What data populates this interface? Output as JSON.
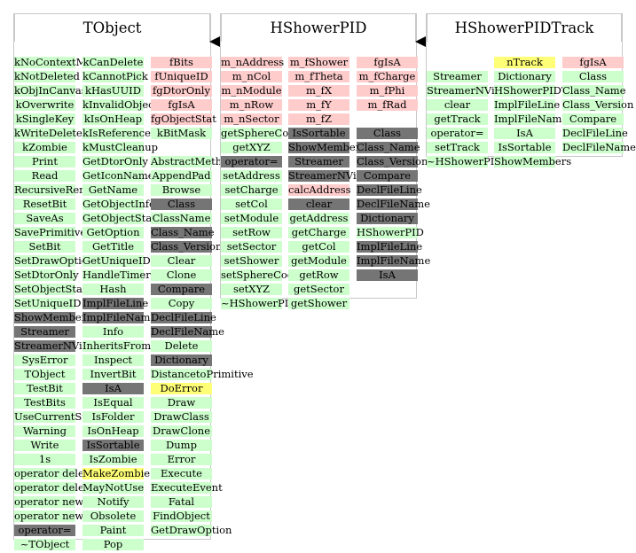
{
  "classes": [
    {
      "title": "TObject",
      "columns": [
        {
          "cells": [
            {
              "t": "kNoContextMenu",
              "c": "green"
            },
            {
              "t": "kNotDeleted",
              "c": "green"
            },
            {
              "t": "kObjInCanvas",
              "c": "green"
            },
            {
              "t": "kOverwrite",
              "c": "green"
            },
            {
              "t": "kSingleKey",
              "c": "green"
            },
            {
              "t": "kWriteDelete",
              "c": "green"
            },
            {
              "t": "kZombie",
              "c": "green"
            },
            {
              "t": "Print",
              "c": "green"
            },
            {
              "t": "Read",
              "c": "green"
            },
            {
              "t": "RecursiveRemove",
              "c": "green"
            },
            {
              "t": "ResetBit",
              "c": "green"
            },
            {
              "t": "SaveAs",
              "c": "green"
            },
            {
              "t": "SavePrimitive",
              "c": "green"
            },
            {
              "t": "SetBit",
              "c": "green"
            },
            {
              "t": "SetDrawOption",
              "c": "green"
            },
            {
              "t": "SetDtorOnly",
              "c": "green"
            },
            {
              "t": "SetObjectStat",
              "c": "green"
            },
            {
              "t": "SetUniqueID",
              "c": "green"
            },
            {
              "t": "ShowMembers",
              "c": "gray"
            },
            {
              "t": "Streamer",
              "c": "gray"
            },
            {
              "t": "StreamerNVirtual",
              "c": "gray"
            },
            {
              "t": "SysError",
              "c": "green"
            },
            {
              "t": "TObject",
              "c": "green"
            },
            {
              "t": "TestBit",
              "c": "green"
            },
            {
              "t": "TestBits",
              "c": "green"
            },
            {
              "t": "UseCurrentStyle",
              "c": "green"
            },
            {
              "t": "Warning",
              "c": "green"
            },
            {
              "t": "Write",
              "c": "green"
            },
            {
              "t": "1s",
              "c": "green"
            },
            {
              "t": "operator delete",
              "c": "green"
            },
            {
              "t": "operator delete[]",
              "c": "green"
            },
            {
              "t": "operator new",
              "c": "green"
            },
            {
              "t": "operator new[]",
              "c": "green"
            },
            {
              "t": "operator=",
              "c": "gray"
            },
            {
              "t": "~TObject",
              "c": "green"
            }
          ]
        },
        {
          "cells": [
            {
              "t": "kCanDelete",
              "c": "green"
            },
            {
              "t": "kCannotPick",
              "c": "green"
            },
            {
              "t": "kHasUUID",
              "c": "green"
            },
            {
              "t": "kInvalidObject",
              "c": "green"
            },
            {
              "t": "kIsOnHeap",
              "c": "green"
            },
            {
              "t": "kIsReferenced",
              "c": "green"
            },
            {
              "t": "kMustCleanup",
              "c": "green"
            },
            {
              "t": "GetDtorOnly",
              "c": "green"
            },
            {
              "t": "GetIconName",
              "c": "green"
            },
            {
              "t": "GetName",
              "c": "green"
            },
            {
              "t": "GetObjectInfo",
              "c": "green"
            },
            {
              "t": "GetObjectStat",
              "c": "green"
            },
            {
              "t": "GetOption",
              "c": "green"
            },
            {
              "t": "GetTitle",
              "c": "green"
            },
            {
              "t": "GetUniqueID",
              "c": "green"
            },
            {
              "t": "HandleTimer",
              "c": "green"
            },
            {
              "t": "Hash",
              "c": "green"
            },
            {
              "t": "ImplFileLine",
              "c": "gray"
            },
            {
              "t": "ImplFileName",
              "c": "gray"
            },
            {
              "t": "Info",
              "c": "green"
            },
            {
              "t": "InheritsFrom",
              "c": "green"
            },
            {
              "t": "Inspect",
              "c": "green"
            },
            {
              "t": "InvertBit",
              "c": "green"
            },
            {
              "t": "IsA",
              "c": "gray"
            },
            {
              "t": "IsEqual",
              "c": "green"
            },
            {
              "t": "IsFolder",
              "c": "green"
            },
            {
              "t": "IsOnHeap",
              "c": "green"
            },
            {
              "t": "IsSortable",
              "c": "gray"
            },
            {
              "t": "IsZombie",
              "c": "green"
            },
            {
              "t": "MakeZombie",
              "c": "yellow"
            },
            {
              "t": "MayNotUse",
              "c": "green"
            },
            {
              "t": "Notify",
              "c": "green"
            },
            {
              "t": "Obsolete",
              "c": "green"
            },
            {
              "t": "Paint",
              "c": "green"
            },
            {
              "t": "Pop",
              "c": "green"
            }
          ]
        },
        {
          "cells": [
            {
              "t": "fBits",
              "c": "pink"
            },
            {
              "t": "fUniqueID",
              "c": "pink"
            },
            {
              "t": "fgDtorOnly",
              "c": "pink"
            },
            {
              "t": "fgIsA",
              "c": "pink"
            },
            {
              "t": "fgObjectStat",
              "c": "pink"
            },
            {
              "t": "kBitMask",
              "c": "green"
            },
            {
              "t": "",
              "c": "empty"
            },
            {
              "t": "AbstractMethod",
              "c": "green"
            },
            {
              "t": "AppendPad",
              "c": "green"
            },
            {
              "t": "Browse",
              "c": "green"
            },
            {
              "t": "Class",
              "c": "gray"
            },
            {
              "t": "ClassName",
              "c": "green"
            },
            {
              "t": "Class_Name",
              "c": "gray"
            },
            {
              "t": "Class_Version",
              "c": "gray"
            },
            {
              "t": "Clear",
              "c": "green"
            },
            {
              "t": "Clone",
              "c": "green"
            },
            {
              "t": "Compare",
              "c": "gray"
            },
            {
              "t": "Copy",
              "c": "green"
            },
            {
              "t": "DeclFileLine",
              "c": "gray"
            },
            {
              "t": "DeclFileName",
              "c": "gray"
            },
            {
              "t": "Delete",
              "c": "green"
            },
            {
              "t": "Dictionary",
              "c": "gray"
            },
            {
              "t": "DistancetoPrimitive",
              "c": "green"
            },
            {
              "t": "DoError",
              "c": "yellow"
            },
            {
              "t": "Draw",
              "c": "green"
            },
            {
              "t": "DrawClass",
              "c": "green"
            },
            {
              "t": "DrawClone",
              "c": "green"
            },
            {
              "t": "Dump",
              "c": "green"
            },
            {
              "t": "Error",
              "c": "green"
            },
            {
              "t": "Execute",
              "c": "green"
            },
            {
              "t": "ExecuteEvent",
              "c": "green"
            },
            {
              "t": "Fatal",
              "c": "green"
            },
            {
              "t": "FindObject",
              "c": "green"
            },
            {
              "t": "GetDrawOption",
              "c": "green"
            }
          ]
        }
      ]
    },
    {
      "title": "HShowerPID",
      "columns": [
        {
          "cells": [
            {
              "t": "m_nAddress",
              "c": "pink"
            },
            {
              "t": "m_nCol",
              "c": "pink"
            },
            {
              "t": "m_nModule",
              "c": "pink"
            },
            {
              "t": "m_nRow",
              "c": "pink"
            },
            {
              "t": "m_nSector",
              "c": "pink"
            },
            {
              "t": "getSphereCoord",
              "c": "green"
            },
            {
              "t": "getXYZ",
              "c": "green"
            },
            {
              "t": "operator=",
              "c": "gray"
            },
            {
              "t": "setAddress",
              "c": "green"
            },
            {
              "t": "setCharge",
              "c": "green"
            },
            {
              "t": "setCol",
              "c": "green"
            },
            {
              "t": "setModule",
              "c": "green"
            },
            {
              "t": "setRow",
              "c": "green"
            },
            {
              "t": "setSector",
              "c": "green"
            },
            {
              "t": "setShower",
              "c": "green"
            },
            {
              "t": "setSphereCoord",
              "c": "green"
            },
            {
              "t": "setXYZ",
              "c": "green"
            },
            {
              "t": "~HShowerPID",
              "c": "green"
            }
          ]
        },
        {
          "cells": [
            {
              "t": "m_fShower",
              "c": "pink"
            },
            {
              "t": "m_fTheta",
              "c": "pink"
            },
            {
              "t": "m_fX",
              "c": "pink"
            },
            {
              "t": "m_fY",
              "c": "pink"
            },
            {
              "t": "m_fZ",
              "c": "pink"
            },
            {
              "t": "IsSortable",
              "c": "gray"
            },
            {
              "t": "ShowMembers",
              "c": "gray"
            },
            {
              "t": "Streamer",
              "c": "gray"
            },
            {
              "t": "StreamerNVirtual",
              "c": "gray"
            },
            {
              "t": "calcAddress",
              "c": "pink"
            },
            {
              "t": "clear",
              "c": "gray"
            },
            {
              "t": "getAddress",
              "c": "green"
            },
            {
              "t": "getCharge",
              "c": "green"
            },
            {
              "t": "getCol",
              "c": "green"
            },
            {
              "t": "getModule",
              "c": "green"
            },
            {
              "t": "getRow",
              "c": "green"
            },
            {
              "t": "getSector",
              "c": "green"
            },
            {
              "t": "getShower",
              "c": "green"
            }
          ]
        },
        {
          "cells": [
            {
              "t": "fgIsA",
              "c": "pink"
            },
            {
              "t": "m_fCharge",
              "c": "pink"
            },
            {
              "t": "m_fPhi",
              "c": "pink"
            },
            {
              "t": "m_fRad",
              "c": "pink"
            },
            {
              "t": "",
              "c": "empty"
            },
            {
              "t": "Class",
              "c": "gray"
            },
            {
              "t": "Class_Name",
              "c": "gray"
            },
            {
              "t": "Class_Version",
              "c": "gray"
            },
            {
              "t": "Compare",
              "c": "gray"
            },
            {
              "t": "DeclFileLine",
              "c": "gray"
            },
            {
              "t": "DeclFileName",
              "c": "gray"
            },
            {
              "t": "Dictionary",
              "c": "gray"
            },
            {
              "t": "HShowerPID",
              "c": "green"
            },
            {
              "t": "ImplFileLine",
              "c": "gray"
            },
            {
              "t": "ImplFileName",
              "c": "gray"
            },
            {
              "t": "IsA",
              "c": "gray"
            }
          ]
        }
      ]
    },
    {
      "title": "HShowerPIDTrack",
      "columns": [
        {
          "cells": [
            {
              "t": "",
              "c": "empty"
            },
            {
              "t": "Streamer",
              "c": "green"
            },
            {
              "t": "StreamerNVirtual",
              "c": "green"
            },
            {
              "t": "clear",
              "c": "green"
            },
            {
              "t": "getTrack",
              "c": "green"
            },
            {
              "t": "operator=",
              "c": "green"
            },
            {
              "t": "setTrack",
              "c": "green"
            },
            {
              "t": "~HShowerPIDTrack",
              "c": "green"
            }
          ]
        },
        {
          "cells": [
            {
              "t": "nTrack",
              "c": "yellow"
            },
            {
              "t": "Dictionary",
              "c": "green"
            },
            {
              "t": "HShowerPIDTrack",
              "c": "green"
            },
            {
              "t": "ImplFileLine",
              "c": "green"
            },
            {
              "t": "ImplFileName",
              "c": "green"
            },
            {
              "t": "IsA",
              "c": "green"
            },
            {
              "t": "IsSortable",
              "c": "green"
            },
            {
              "t": "ShowMembers",
              "c": "green"
            }
          ]
        },
        {
          "cells": [
            {
              "t": "fgIsA",
              "c": "pink"
            },
            {
              "t": "Class",
              "c": "green"
            },
            {
              "t": "Class_Name",
              "c": "green"
            },
            {
              "t": "Class_Version",
              "c": "green"
            },
            {
              "t": "Compare",
              "c": "green"
            },
            {
              "t": "DeclFileLine",
              "c": "green"
            },
            {
              "t": "DeclFileName",
              "c": "green"
            }
          ]
        }
      ]
    }
  ]
}
